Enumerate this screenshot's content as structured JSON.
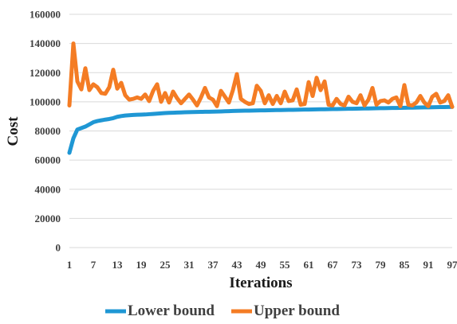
{
  "chart_data": {
    "type": "line",
    "title": "",
    "xlabel": "Iterations",
    "ylabel": "Cost",
    "ylim": [
      0,
      160000
    ],
    "yticks": [
      0,
      20000,
      40000,
      60000,
      80000,
      100000,
      120000,
      140000,
      160000
    ],
    "xlim": [
      1,
      97
    ],
    "xticks": [
      1,
      7,
      13,
      19,
      25,
      31,
      37,
      43,
      49,
      55,
      61,
      67,
      73,
      79,
      85,
      91,
      97
    ],
    "grid": "horizontal",
    "legend": "bottom",
    "series": [
      {
        "name": "Lower bound",
        "color": "#1f97d4",
        "x": [
          1,
          2,
          3,
          4,
          5,
          6,
          7,
          8,
          9,
          10,
          11,
          12,
          13,
          14,
          15,
          16,
          17,
          18,
          19,
          20,
          21,
          22,
          23,
          24,
          25,
          26,
          27,
          28,
          29,
          30,
          31,
          32,
          33,
          34,
          35,
          36,
          37,
          38,
          39,
          40,
          41,
          42,
          43,
          44,
          45,
          46,
          47,
          48,
          49,
          50,
          51,
          52,
          53,
          54,
          55,
          56,
          57,
          58,
          59,
          60,
          61,
          62,
          63,
          64,
          65,
          66,
          67,
          68,
          69,
          70,
          71,
          72,
          73,
          74,
          75,
          76,
          77,
          78,
          79,
          80,
          81,
          82,
          83,
          84,
          85,
          86,
          87,
          88,
          89,
          90,
          91,
          92,
          93,
          94,
          95,
          96,
          97
        ],
        "values": [
          65000,
          75000,
          81000,
          82000,
          83000,
          84500,
          86000,
          86800,
          87300,
          87800,
          88200,
          88800,
          89700,
          90200,
          90600,
          90800,
          91000,
          91100,
          91200,
          91300,
          91500,
          91700,
          91900,
          92100,
          92300,
          92400,
          92500,
          92600,
          92700,
          92800,
          92900,
          93000,
          93050,
          93100,
          93150,
          93200,
          93250,
          93300,
          93400,
          93500,
          93600,
          93700,
          93800,
          93850,
          93900,
          93950,
          94000,
          94050,
          94100,
          94150,
          94200,
          94250,
          94300,
          94350,
          94400,
          94450,
          94500,
          94550,
          94600,
          94650,
          94700,
          94750,
          94800,
          94850,
          94900,
          94950,
          95000,
          95050,
          95100,
          95150,
          95200,
          95250,
          95300,
          95350,
          95400,
          95450,
          95500,
          95550,
          95600,
          95650,
          95700,
          95750,
          95800,
          95850,
          95900,
          95950,
          96000,
          96050,
          96100,
          96150,
          96200,
          96250,
          96300,
          96350,
          96400,
          96450,
          96500
        ]
      },
      {
        "name": "Upper bound",
        "color": "#f47c24",
        "x": [
          1,
          2,
          3,
          4,
          5,
          6,
          7,
          8,
          9,
          10,
          11,
          12,
          13,
          14,
          15,
          16,
          17,
          18,
          19,
          20,
          21,
          22,
          23,
          24,
          25,
          26,
          27,
          28,
          29,
          30,
          31,
          32,
          33,
          34,
          35,
          36,
          37,
          38,
          39,
          40,
          41,
          42,
          43,
          44,
          45,
          46,
          47,
          48,
          49,
          50,
          51,
          52,
          53,
          54,
          55,
          56,
          57,
          58,
          59,
          60,
          61,
          62,
          63,
          64,
          65,
          66,
          67,
          68,
          69,
          70,
          71,
          72,
          73,
          74,
          75,
          76,
          77,
          78,
          79,
          80,
          81,
          82,
          83,
          84,
          85,
          86,
          87,
          88,
          89,
          90,
          91,
          92,
          93,
          94,
          95,
          96,
          97
        ],
        "values": [
          97500,
          140000,
          114000,
          108500,
          123000,
          108000,
          112000,
          110000,
          106000,
          105500,
          110000,
          122000,
          109000,
          113000,
          104500,
          101500,
          102000,
          103000,
          102000,
          105000,
          100500,
          107500,
          112000,
          100000,
          106000,
          99500,
          107000,
          102500,
          99000,
          102000,
          105000,
          101500,
          97500,
          103000,
          109500,
          103000,
          101500,
          97000,
          107500,
          103500,
          99500,
          108000,
          119000,
          102000,
          100000,
          98500,
          99000,
          111000,
          107500,
          99000,
          104500,
          98500,
          104000,
          99000,
          107000,
          100500,
          101000,
          108500,
          98000,
          98500,
          113500,
          104000,
          116500,
          108000,
          114000,
          98000,
          97500,
          102000,
          98500,
          97500,
          103500,
          100000,
          99000,
          104500,
          97500,
          101500,
          109500,
          98000,
          100500,
          101000,
          99500,
          102000,
          103000,
          97000,
          111500,
          98000,
          97500,
          99500,
          104000,
          99500,
          97000,
          103500,
          105500,
          99500,
          100500,
          104500,
          96500
        ]
      }
    ]
  }
}
